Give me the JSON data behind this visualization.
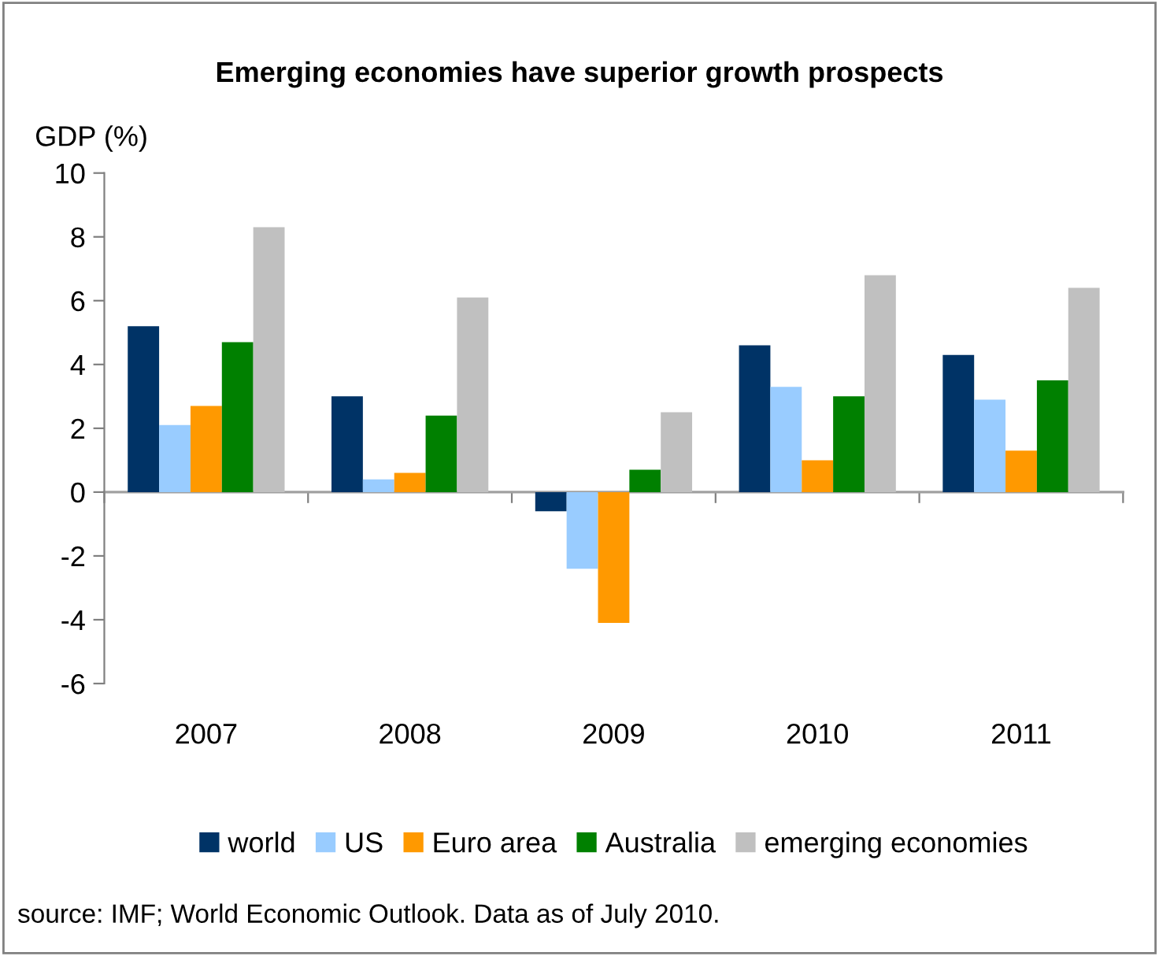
{
  "chart_data": {
    "type": "bar",
    "title": "Emerging economies have superior growth prospects",
    "ylabel": "GDP (%)",
    "categories": [
      "2007",
      "2008",
      "2009",
      "2010",
      "2011"
    ],
    "series": [
      {
        "name": "world",
        "color": "#003366",
        "values": [
          5.2,
          3.0,
          -0.6,
          4.6,
          4.3
        ]
      },
      {
        "name": "US",
        "color": "#99ccff",
        "values": [
          2.1,
          0.4,
          -2.4,
          3.3,
          2.9
        ]
      },
      {
        "name": "Euro area",
        "color": "#ff9900",
        "values": [
          2.7,
          0.6,
          -4.1,
          1.0,
          1.3
        ]
      },
      {
        "name": "Australia",
        "color": "#008000",
        "values": [
          4.7,
          2.4,
          0.7,
          3.0,
          3.5
        ]
      },
      {
        "name": "emerging economies",
        "color": "#c0c0c0",
        "values": [
          8.3,
          6.1,
          2.5,
          6.8,
          6.4
        ]
      }
    ],
    "ylim": [
      -6,
      10
    ],
    "yticks": [
      -6,
      -4,
      -2,
      0,
      2,
      4,
      6,
      8,
      10
    ],
    "legend": "bottom",
    "annotations": [
      "source: IMF; World Economic Outlook. Data as of July 2010."
    ]
  }
}
